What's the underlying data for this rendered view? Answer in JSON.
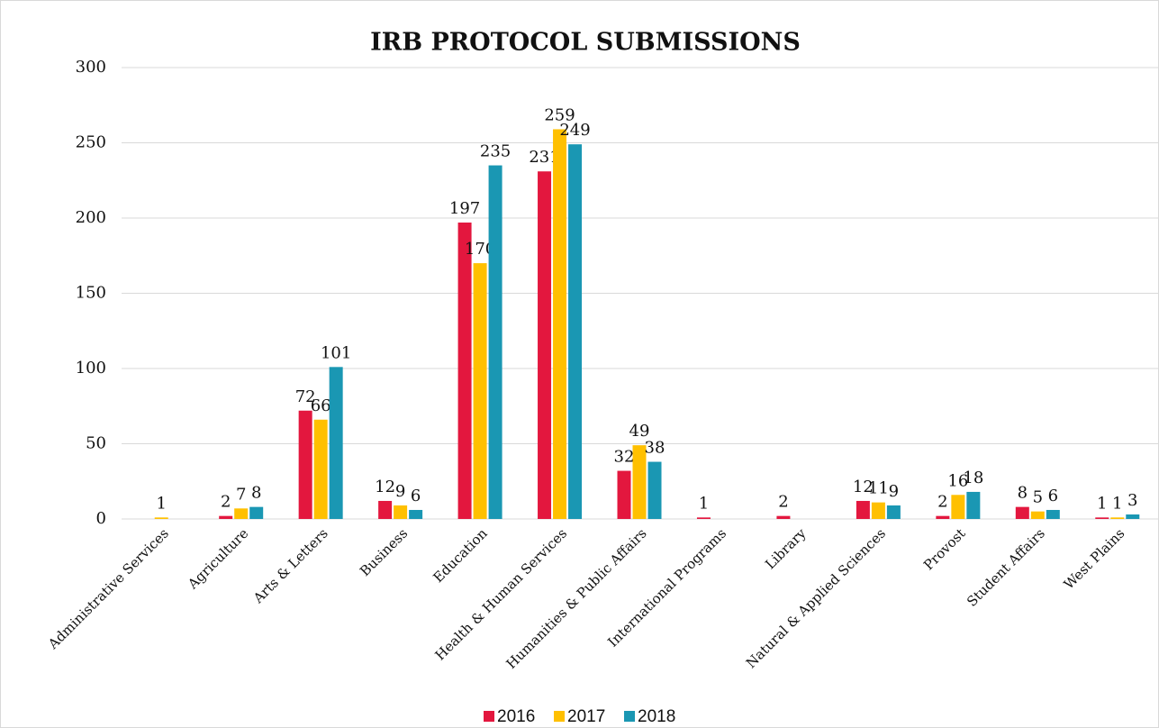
{
  "chart_data": {
    "type": "bar",
    "title": "IRB PROTOCOL SUBMISSIONS",
    "categories": [
      "Administrative Services",
      "Agriculture",
      "Arts & Letters",
      "Business",
      "Education",
      "Health & Human Services",
      "Humanities & Public Affairs",
      "International Programs",
      "Library",
      "Natural & Applied Sciences",
      "Provost",
      "Student Affairs",
      "West Plains"
    ],
    "series": [
      {
        "name": "2016",
        "color": "#e3173e",
        "values": [
          null,
          2,
          72,
          12,
          197,
          231,
          32,
          1,
          2,
          12,
          2,
          8,
          1
        ]
      },
      {
        "name": "2017",
        "color": "#ffc000",
        "values": [
          1,
          7,
          66,
          9,
          170,
          259,
          49,
          null,
          null,
          11,
          16,
          5,
          1
        ]
      },
      {
        "name": "2018",
        "color": "#1a97b3",
        "values": [
          null,
          8,
          101,
          6,
          235,
          249,
          38,
          null,
          null,
          9,
          18,
          6,
          3
        ]
      }
    ],
    "ylim": [
      0,
      300
    ],
    "yticks": [
      0,
      50,
      100,
      150,
      200,
      250,
      300
    ],
    "grid": true,
    "legend": "bottom"
  }
}
